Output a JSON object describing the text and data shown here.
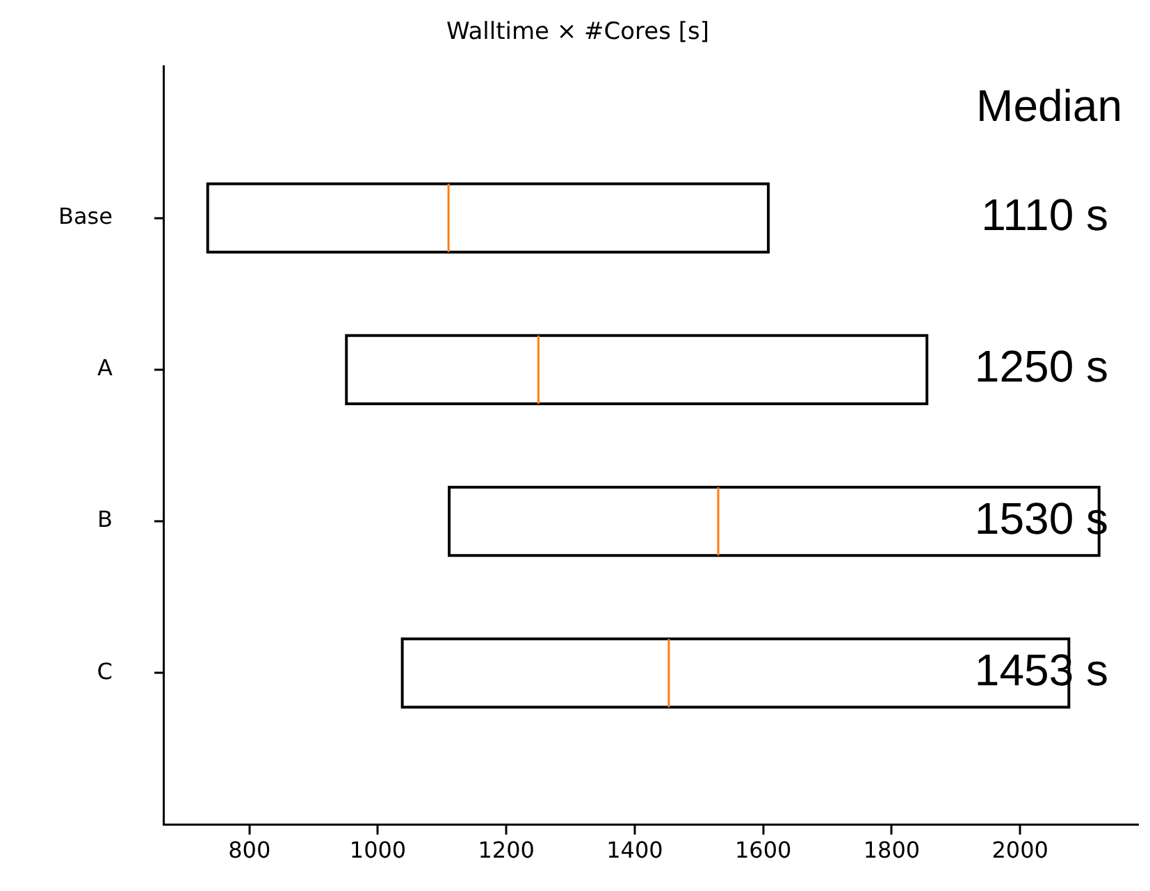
{
  "chart_data": {
    "type": "box",
    "title": "Walltime × #Cores [s]",
    "orientation": "horizontal",
    "categories": [
      "Base",
      "A",
      "B",
      "C"
    ],
    "boxes": [
      {
        "low": 735,
        "q1": 735,
        "median": 1110,
        "q3": 1608,
        "high": 1608
      },
      {
        "low": 951,
        "q1": 951,
        "median": 1250,
        "q3": 1855,
        "high": 1855
      },
      {
        "low": 1111,
        "q1": 1111,
        "median": 1530,
        "q3": 2123,
        "high": 2123
      },
      {
        "low": 1038,
        "q1": 1038,
        "median": 1453,
        "q3": 2076,
        "high": 2076
      }
    ],
    "color": "#000000",
    "xlim": [
      667,
      2185
    ],
    "xticks": [
      800,
      1000,
      1200,
      1400,
      1600,
      1800,
      2000
    ],
    "annotations": [
      "Median",
      "1110 s",
      "1250 s",
      "1530 s",
      "1453 s"
    ],
    "grid": false,
    "legend": false
  }
}
